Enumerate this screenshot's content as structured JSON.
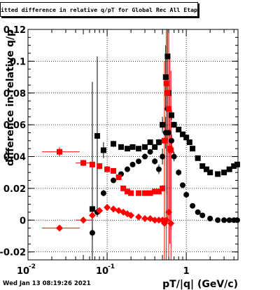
{
  "canvas": {
    "title": "Fitted difference in relative q/pT for Global Rec All EtapT",
    "timestamp": "Wed Jan 13 08:19:26 2021"
  },
  "chart_data": {
    "type": "scatter",
    "title": "Fitted difference in relative q/pT for Global Rec All EtapT",
    "xlabel": "pT/|q| (GeV/c)",
    "ylabel": "difference in relative q/p",
    "xscale": "log",
    "xlim": [
      0.01,
      4.5
    ],
    "ylim": [
      -0.025,
      0.12
    ],
    "grid": true,
    "x_tick_labels": [
      "10",
      "-2",
      "10",
      "-1",
      "1"
    ],
    "y_tick_labels": [
      "-0.02",
      "0",
      "0.02",
      "0.04",
      "0.06",
      "0.08",
      "0.1",
      "0.12"
    ],
    "series": [
      {
        "color": "#000000",
        "marker": "square",
        "points": [
          [
            0.065,
            0.007
          ],
          [
            0.075,
            0.053
          ],
          [
            0.09,
            0.044
          ],
          [
            0.12,
            0.048
          ],
          [
            0.15,
            0.046
          ],
          [
            0.18,
            0.045
          ],
          [
            0.21,
            0.046
          ],
          [
            0.25,
            0.045
          ],
          [
            0.3,
            0.046
          ],
          [
            0.35,
            0.049
          ],
          [
            0.4,
            0.046
          ],
          [
            0.45,
            0.049
          ],
          [
            0.5,
            0.06
          ],
          [
            0.55,
            0.09
          ],
          [
            0.58,
            0.103
          ],
          [
            0.6,
            0.08
          ],
          [
            0.65,
            0.066
          ],
          [
            0.7,
            0.06
          ],
          [
            0.8,
            0.057
          ],
          [
            0.9,
            0.054
          ],
          [
            1.0,
            0.052
          ],
          [
            1.1,
            0.049
          ],
          [
            1.2,
            0.045
          ],
          [
            1.4,
            0.039
          ],
          [
            1.6,
            0.034
          ],
          [
            1.8,
            0.032
          ],
          [
            2.0,
            0.03
          ],
          [
            2.5,
            0.029
          ],
          [
            3.0,
            0.03
          ],
          [
            3.5,
            0.032
          ],
          [
            4.0,
            0.034
          ],
          [
            4.4,
            0.035
          ]
        ],
        "yerr": [
          0.08,
          0.05,
          0.005,
          0.002,
          0.001,
          0.001,
          0.001,
          0.001,
          0.001,
          0.001,
          0.001,
          0.002,
          0.005,
          0.02,
          0.02,
          0.01,
          0.003,
          0.002,
          0.001,
          0.001,
          0.001,
          0.001,
          0.001,
          0.001,
          0.001,
          0.001,
          0.001,
          0.001,
          0.001,
          0.001,
          0.001,
          0.001
        ]
      },
      {
        "color": "#000000",
        "marker": "circle",
        "points": [
          [
            0.065,
            -0.008
          ],
          [
            0.075,
            0.005
          ],
          [
            0.09,
            0.017
          ],
          [
            0.12,
            0.025
          ],
          [
            0.15,
            0.029
          ],
          [
            0.18,
            0.032
          ],
          [
            0.21,
            0.035
          ],
          [
            0.25,
            0.037
          ],
          [
            0.3,
            0.04
          ],
          [
            0.35,
            0.043
          ],
          [
            0.4,
            0.037
          ],
          [
            0.45,
            0.032
          ],
          [
            0.5,
            0.04
          ],
          [
            0.55,
            0.055
          ],
          [
            0.58,
            0.07
          ],
          [
            0.6,
            0.055
          ],
          [
            0.65,
            0.05
          ],
          [
            0.7,
            0.04
          ],
          [
            0.8,
            0.03
          ],
          [
            0.9,
            0.022
          ],
          [
            1.0,
            0.016
          ],
          [
            1.2,
            0.009
          ],
          [
            1.4,
            0.005
          ],
          [
            1.6,
            0.003
          ],
          [
            2.0,
            0.001
          ],
          [
            2.5,
            0.0
          ],
          [
            3.0,
            0.0
          ],
          [
            3.5,
            0.0
          ],
          [
            4.0,
            0.0
          ],
          [
            4.4,
            0.0
          ]
        ],
        "yerr": [
          0.004,
          0.003,
          0.002,
          0.001,
          0.001,
          0.001,
          0.001,
          0.001,
          0.001,
          0.001,
          0.002,
          0.003,
          0.005,
          0.01,
          0.02,
          0.01,
          0.004,
          0.003,
          0.002,
          0.001,
          0.001,
          0.001,
          0.001,
          0.001,
          0.001,
          0.001,
          0.001,
          0.001,
          0.001,
          0.001
        ]
      },
      {
        "color": "#ff0000",
        "marker": "square",
        "points": [
          [
            0.025,
            0.043
          ],
          [
            0.05,
            0.036
          ],
          [
            0.065,
            0.035
          ],
          [
            0.08,
            0.034
          ],
          [
            0.1,
            0.032
          ],
          [
            0.12,
            0.031
          ],
          [
            0.14,
            0.027
          ],
          [
            0.16,
            0.02
          ],
          [
            0.18,
            0.018
          ],
          [
            0.2,
            0.017
          ],
          [
            0.25,
            0.017
          ],
          [
            0.3,
            0.017
          ],
          [
            0.35,
            0.017
          ],
          [
            0.4,
            0.018
          ],
          [
            0.45,
            0.018
          ],
          [
            0.5,
            0.02
          ],
          [
            0.53,
            0.05
          ],
          [
            0.56,
            0.086
          ],
          [
            0.58,
            0.08
          ],
          [
            0.6,
            0.07
          ],
          [
            0.62,
            0.045
          ],
          [
            0.64,
            0.044
          ]
        ],
        "yerr": [
          0.003,
          0.002,
          0.002,
          0.002,
          0.001,
          0.001,
          0.001,
          0.001,
          0.001,
          0.001,
          0.001,
          0.001,
          0.001,
          0.001,
          0.001,
          0.002,
          0.05,
          0.07,
          0.08,
          0.07,
          0.06,
          0.05
        ],
        "xerr_low": [
          0.01,
          0.01,
          0,
          0,
          0,
          0,
          0,
          0,
          0,
          0,
          0,
          0,
          0,
          0,
          0,
          0,
          0,
          0,
          0,
          0,
          0,
          0
        ],
        "xerr_high": [
          0.02,
          0.015,
          0,
          0,
          0,
          0,
          0,
          0,
          0,
          0,
          0,
          0,
          0,
          0,
          0,
          0,
          0,
          0,
          0,
          0,
          0,
          0
        ]
      },
      {
        "color": "#ff0000",
        "marker": "diamond",
        "points": [
          [
            0.025,
            -0.005
          ],
          [
            0.05,
            0.0
          ],
          [
            0.065,
            0.003
          ],
          [
            0.08,
            0.006
          ],
          [
            0.1,
            0.008
          ],
          [
            0.12,
            0.007
          ],
          [
            0.14,
            0.006
          ],
          [
            0.16,
            0.005
          ],
          [
            0.18,
            0.004
          ],
          [
            0.2,
            0.003
          ],
          [
            0.25,
            0.002
          ],
          [
            0.3,
            0.001
          ],
          [
            0.35,
            0.001
          ],
          [
            0.4,
            0.0
          ],
          [
            0.45,
            0.0
          ],
          [
            0.5,
            0.0
          ],
          [
            0.53,
            -0.002
          ],
          [
            0.56,
            0.0
          ],
          [
            0.6,
            0.005
          ],
          [
            0.64,
            -0.002
          ]
        ],
        "yerr": [
          0.001,
          0.002,
          0.001,
          0.001,
          0.001,
          0.001,
          0.001,
          0.001,
          0.001,
          0.001,
          0.001,
          0.001,
          0.001,
          0.001,
          0.001,
          0.001,
          0.06,
          0.06,
          0.06,
          0.06
        ],
        "xerr_low": [
          0.01,
          0.01,
          0,
          0,
          0,
          0,
          0,
          0,
          0,
          0,
          0,
          0,
          0,
          0,
          0,
          0,
          0,
          0,
          0,
          0
        ],
        "xerr_high": [
          0.02,
          0.015,
          0,
          0,
          0,
          0,
          0,
          0,
          0,
          0,
          0,
          0,
          0,
          0,
          0,
          0,
          0,
          0,
          0,
          0
        ]
      }
    ]
  }
}
